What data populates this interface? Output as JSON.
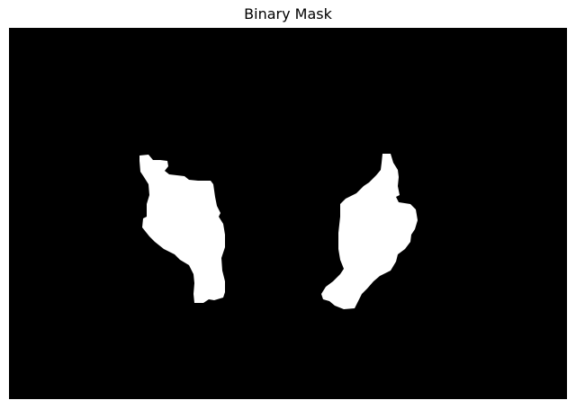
{
  "title": "Binary Mask",
  "colors": {
    "background": "#000000",
    "foreground": "#ffffff"
  },
  "regions": [
    {
      "name": "left-blob"
    },
    {
      "name": "right-blob"
    }
  ]
}
